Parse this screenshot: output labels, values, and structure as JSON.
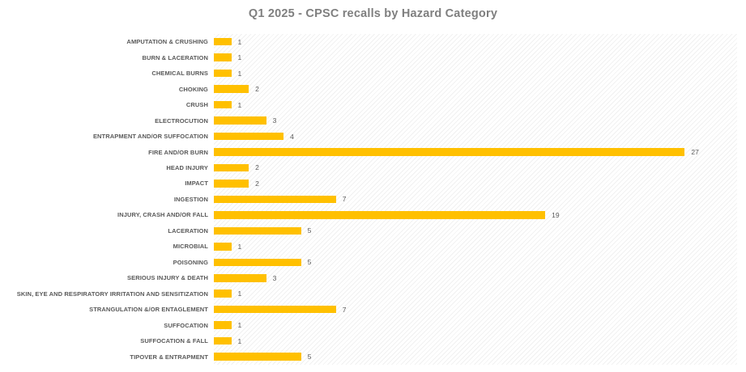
{
  "title": "Q1 2025 - CPSC recalls by Hazard Category",
  "chart_data": {
    "type": "bar",
    "orientation": "horizontal",
    "title": "Q1 2025 - CPSC recalls by Hazard Category",
    "categories": [
      "AMPUTATION & CRUSHING",
      "BURN & LACERATION",
      "CHEMICAL BURNS",
      "CHOKING",
      "CRUSH",
      "ELECTROCUTION",
      "ENTRAPMENT AND/OR SUFFOCATION",
      "FIRE AND/OR BURN",
      "HEAD INJURY",
      "IMPACT",
      "INGESTION",
      "INJURY, CRASH AND/OR FALL",
      "LACERATION",
      "MICROBIAL",
      "POISONING",
      "SERIOUS INJURY & DEATH",
      "SKIN, EYE AND RESPIRATORY IRRITATION AND SENSITIZATION",
      "STRANGULATION &/OR ENTAGLEMENT",
      "SUFFOCATION",
      "SUFFOCATION & FALL",
      "TIPOVER & ENTRAPMENT"
    ],
    "values": [
      1,
      1,
      1,
      2,
      1,
      3,
      4,
      27,
      2,
      2,
      7,
      19,
      5,
      1,
      5,
      3,
      1,
      7,
      1,
      1,
      5
    ],
    "xlabel": "",
    "ylabel": "",
    "xlim": [
      0,
      30
    ],
    "data_labels": true,
    "legend": false,
    "grid": false,
    "plot_bg_pattern": "diagonal-hatch"
  },
  "colors": {
    "bar": "#FFC000",
    "title_text": "#7F7F7F",
    "category_text": "#595959",
    "value_text": "#595959",
    "hatch_line": "#ECECEC",
    "background": "#FFFFFF"
  }
}
